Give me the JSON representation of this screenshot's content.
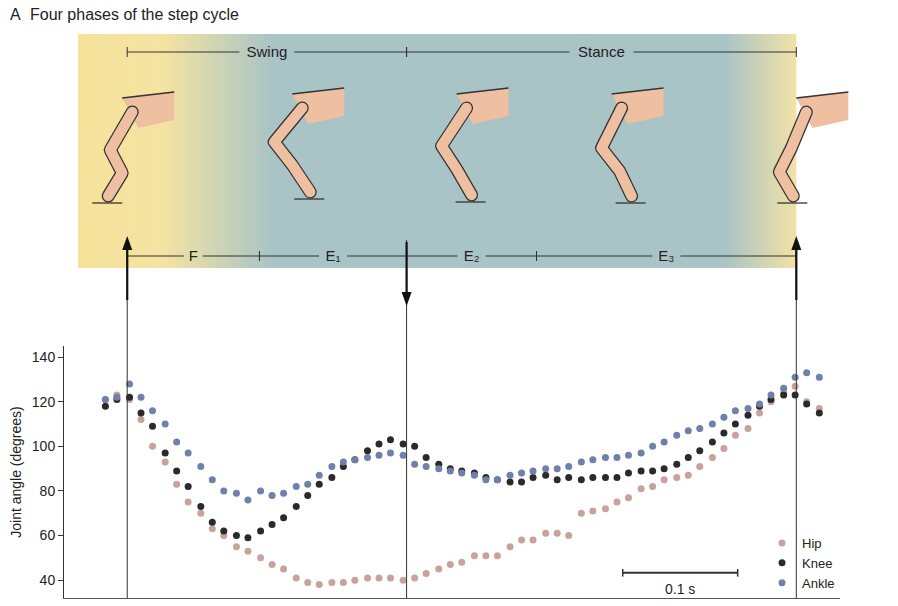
{
  "chart_data": {
    "type": "scatter",
    "panel_label": "A",
    "title": "Four phases of the step cycle",
    "y_label": "Joint angle (degrees)",
    "x": [
      -0.019,
      -0.009,
      0.002,
      0.012,
      0.022,
      0.033,
      0.043,
      0.053,
      0.064,
      0.074,
      0.084,
      0.095,
      0.105,
      0.116,
      0.126,
      0.136,
      0.147,
      0.157,
      0.167,
      0.178,
      0.188,
      0.198,
      0.209,
      0.219,
      0.229,
      0.24,
      0.25,
      0.26,
      0.271,
      0.281,
      0.291,
      0.302,
      0.312,
      0.322,
      0.333,
      0.343,
      0.353,
      0.364,
      0.374,
      0.384,
      0.395,
      0.405,
      0.416,
      0.426,
      0.436,
      0.447,
      0.457,
      0.467,
      0.478,
      0.488,
      0.498,
      0.509,
      0.519,
      0.529,
      0.54,
      0.55,
      0.56,
      0.571,
      0.581,
      0.591,
      0.602
    ],
    "series": [
      {
        "name": "Hip",
        "color": "#c9a29c",
        "values": [
          121,
          123,
          121,
          112,
          100,
          93,
          83,
          75,
          70,
          63,
          60,
          55,
          53,
          50,
          47,
          45,
          41,
          39,
          38,
          39,
          39,
          40,
          41,
          41,
          41,
          40,
          41,
          43,
          45,
          47,
          48,
          51,
          51,
          51,
          55,
          58,
          58,
          61,
          61,
          60,
          70,
          71,
          72,
          75,
          77,
          81,
          82,
          85,
          86,
          87,
          91,
          95,
          99,
          105,
          108,
          115,
          120,
          124,
          127,
          120,
          117
        ]
      },
      {
        "name": "Knee",
        "color": "#2a2a2a",
        "values": [
          118,
          121,
          122,
          115,
          109,
          97,
          89,
          82,
          73,
          66,
          62,
          60,
          59,
          62,
          65,
          68,
          73,
          78,
          83,
          86,
          91,
          94,
          98,
          101,
          103,
          101,
          100,
          95,
          92,
          90,
          89,
          88,
          86,
          85,
          84,
          84,
          86,
          87,
          85,
          86,
          85,
          86,
          86,
          86,
          88,
          89,
          89,
          90,
          92,
          95,
          98,
          102,
          106,
          110,
          114,
          118,
          121,
          123,
          123,
          119,
          115
        ]
      },
      {
        "name": "Ankle",
        "color": "#6f80ab",
        "values": [
          121,
          122,
          128,
          122,
          116,
          110,
          102,
          97,
          91,
          85,
          80,
          79,
          76,
          80,
          78,
          79,
          82,
          83,
          87,
          91,
          93,
          94,
          95,
          96,
          97,
          96,
          92,
          91,
          90,
          89,
          88,
          87,
          85,
          85,
          87,
          88,
          89,
          90,
          90,
          91,
          93,
          94,
          95,
          95,
          96,
          97,
          100,
          102,
          105,
          107,
          108,
          110,
          113,
          116,
          117,
          119,
          123,
          126,
          131,
          133,
          131
        ]
      }
    ],
    "xlim": [
      -0.055,
      0.62
    ],
    "ylim": [
      32,
      145
    ],
    "yticks": [
      40,
      60,
      80,
      100,
      120,
      140
    ],
    "tick_labels": "y",
    "grid": false,
    "legend": "bottom right",
    "marker": "circle",
    "events": [
      0,
      0.243,
      0.582
    ],
    "phases": [
      {
        "label": "Swing",
        "start": 0,
        "end": 0.243
      },
      {
        "label": "Stance",
        "start": 0.243,
        "end": 0.582
      }
    ],
    "subphases": [
      {
        "label": "F",
        "start": 0,
        "end": 0.115
      },
      {
        "label": "E₁",
        "start": 0.115,
        "end": 0.243
      },
      {
        "label": "E₂",
        "start": 0.243,
        "end": 0.356
      },
      {
        "label": "E₃",
        "start": 0.356,
        "end": 0.582
      }
    ],
    "scale_bar": {
      "length": 0.1,
      "label": "0.1 s"
    }
  }
}
